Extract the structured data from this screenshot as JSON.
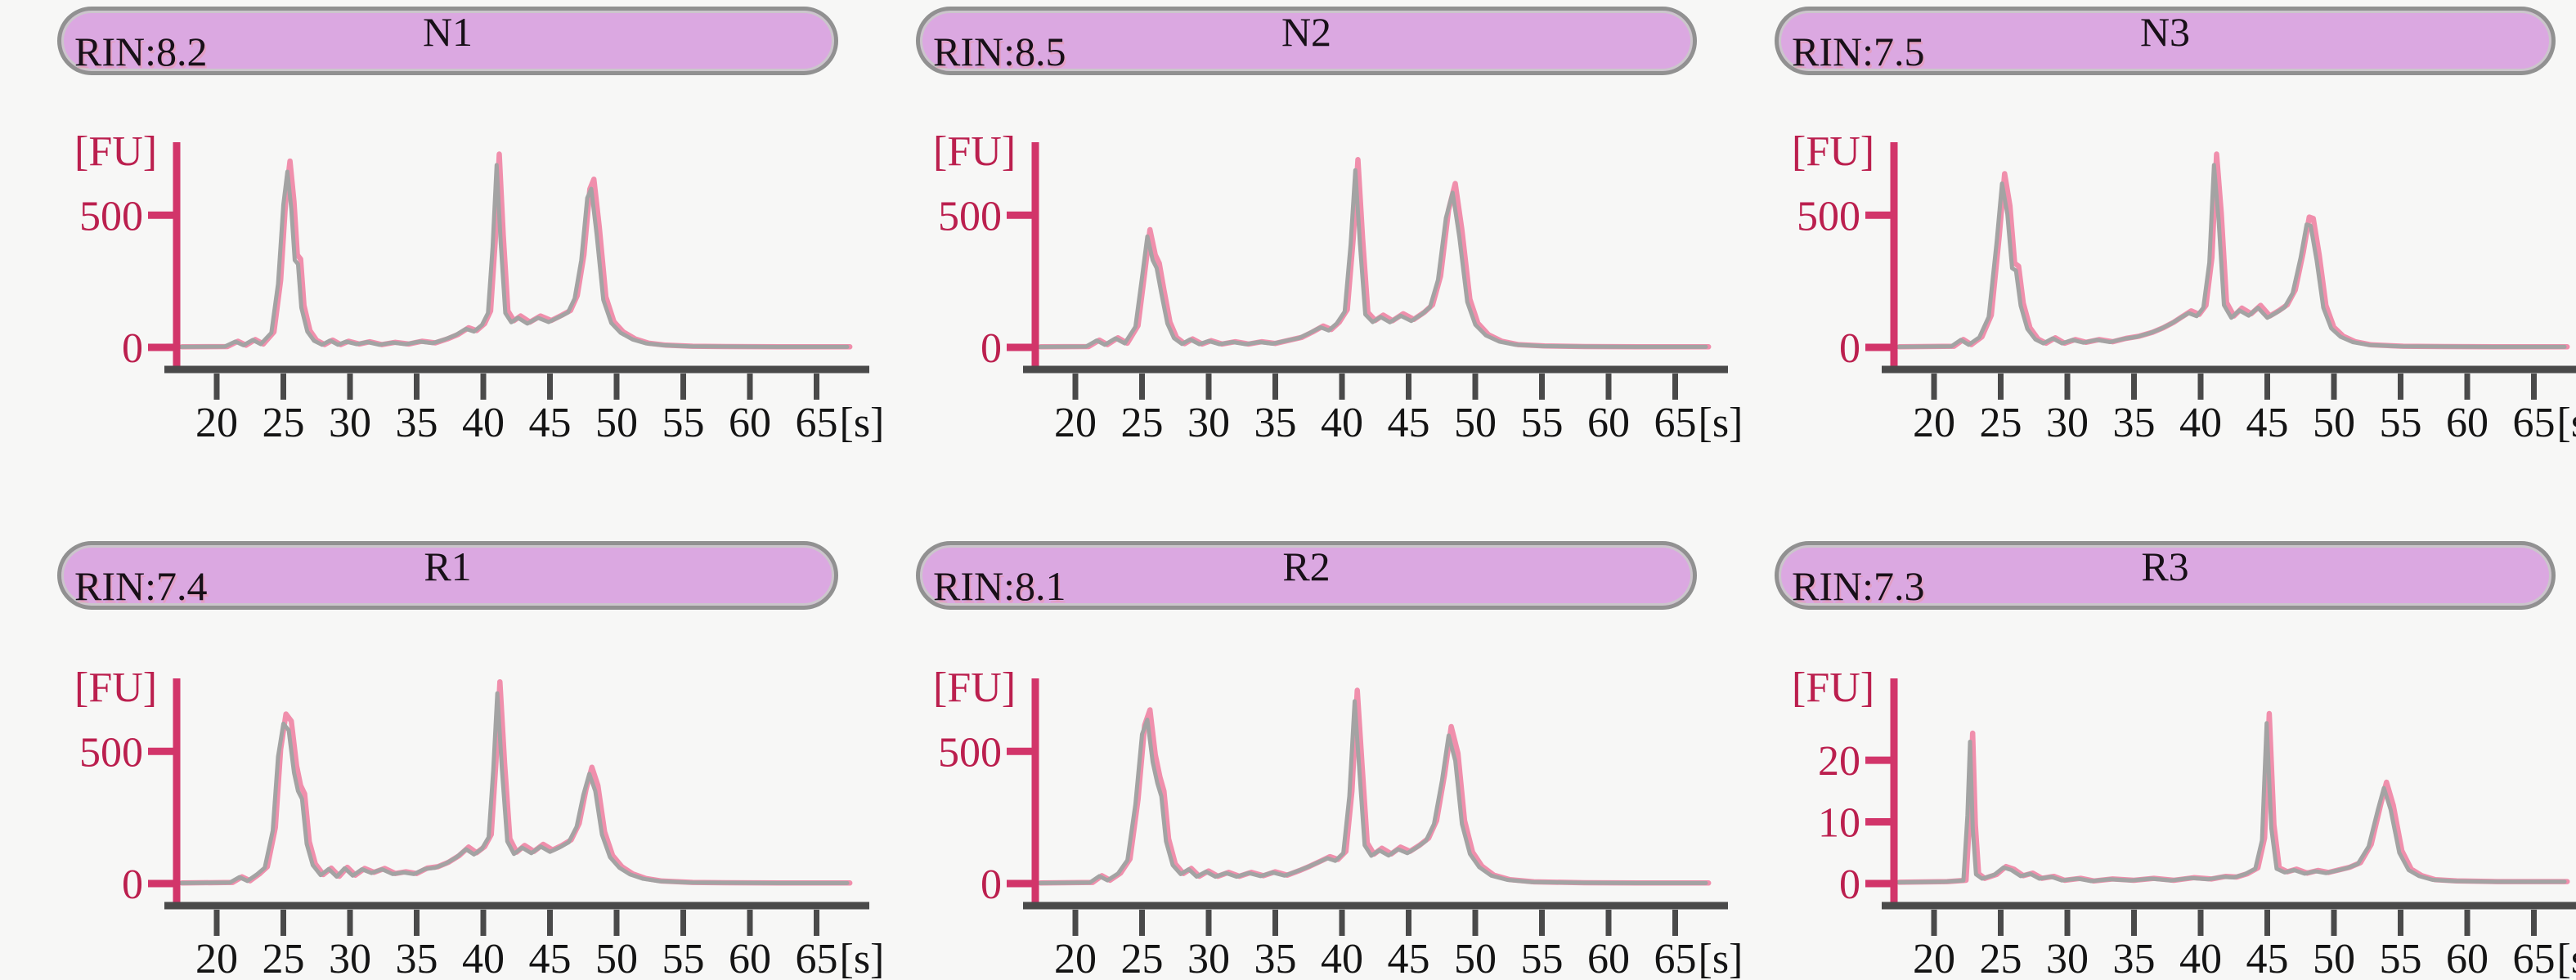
{
  "figure": {
    "description": "RNA electropherograms with RIN scores",
    "y_unit_label": "[FU]",
    "x_unit_label": "[s]"
  },
  "colors": {
    "background": "#f7f7f6",
    "pill_fill": "#dba8e1",
    "pill_border": "#919191",
    "header_text": "#181018",
    "y_axis_crimson": "#d2356a",
    "y_label_crimson": "#bb1f4e",
    "x_axis_dark": "#4a4a4a",
    "x_label_black": "#141414",
    "trace_gray": "#a3a3a3",
    "trace_pink": "#f08fac"
  },
  "axis": {
    "x_ticks": [
      20,
      25,
      30,
      35,
      40,
      45,
      50,
      55,
      60,
      65
    ],
    "x_unit_label": "[s]",
    "y_unit_label": "[FU]"
  },
  "chart_data": [
    {
      "type": "line",
      "title": "N1",
      "rin": "RIN:8.2",
      "xlabel": "[s]",
      "ylabel": "[FU]",
      "y_ticks": [
        {
          "v": 500,
          "label": "500"
        },
        {
          "v": 0,
          "label": "0"
        }
      ],
      "y_range": [
        0,
        770
      ],
      "x_range": [
        17.2,
        67.3
      ],
      "points": [
        [
          17.2,
          2
        ],
        [
          20.6,
          3
        ],
        [
          21.4,
          22
        ],
        [
          22,
          8
        ],
        [
          22.7,
          28
        ],
        [
          23.3,
          12
        ],
        [
          24.1,
          55
        ],
        [
          24.6,
          240
        ],
        [
          25,
          540
        ],
        [
          25.3,
          665
        ],
        [
          25.6,
          520
        ],
        [
          25.85,
          330
        ],
        [
          26.1,
          315
        ],
        [
          26.35,
          150
        ],
        [
          26.8,
          60
        ],
        [
          27.3,
          25
        ],
        [
          27.9,
          10
        ],
        [
          28.5,
          26
        ],
        [
          29.1,
          10
        ],
        [
          29.7,
          22
        ],
        [
          30.5,
          12
        ],
        [
          31.3,
          20
        ],
        [
          32.2,
          10
        ],
        [
          33.2,
          18
        ],
        [
          34.2,
          12
        ],
        [
          35.2,
          22
        ],
        [
          36.2,
          16
        ],
        [
          37.1,
          30
        ],
        [
          37.9,
          46
        ],
        [
          38.7,
          70
        ],
        [
          39.3,
          60
        ],
        [
          39.9,
          85
        ],
        [
          40.35,
          130
        ],
        [
          40.7,
          380
        ],
        [
          41,
          690
        ],
        [
          41.3,
          400
        ],
        [
          41.65,
          130
        ],
        [
          42.1,
          95
        ],
        [
          42.6,
          112
        ],
        [
          43.3,
          90
        ],
        [
          44.1,
          112
        ],
        [
          44.9,
          96
        ],
        [
          45.7,
          115
        ],
        [
          46.35,
          132
        ],
        [
          46.85,
          185
        ],
        [
          47.35,
          330
        ],
        [
          47.8,
          565
        ],
        [
          48.1,
          600
        ],
        [
          48.5,
          430
        ],
        [
          49,
          180
        ],
        [
          49.6,
          92
        ],
        [
          50.3,
          55
        ],
        [
          51.2,
          30
        ],
        [
          52.2,
          15
        ],
        [
          53.5,
          8
        ],
        [
          55.5,
          4
        ],
        [
          58,
          3
        ],
        [
          62,
          2
        ],
        [
          67.3,
          2
        ]
      ]
    },
    {
      "type": "line",
      "title": "N2",
      "rin": "RIN:8.5",
      "xlabel": "[s]",
      "ylabel": "[FU]",
      "y_ticks": [
        {
          "v": 500,
          "label": "500"
        },
        {
          "v": 0,
          "label": "0"
        }
      ],
      "y_range": [
        0,
        770
      ],
      "x_range": [
        17.2,
        67.3
      ],
      "points": [
        [
          17.2,
          2
        ],
        [
          20.8,
          3
        ],
        [
          21.6,
          26
        ],
        [
          22.2,
          10
        ],
        [
          23,
          34
        ],
        [
          23.7,
          15
        ],
        [
          24.5,
          78
        ],
        [
          25,
          265
        ],
        [
          25.4,
          420
        ],
        [
          25.8,
          330
        ],
        [
          26.1,
          300
        ],
        [
          26.45,
          205
        ],
        [
          26.9,
          90
        ],
        [
          27.4,
          35
        ],
        [
          28,
          13
        ],
        [
          28.6,
          30
        ],
        [
          29.3,
          12
        ],
        [
          30,
          24
        ],
        [
          30.8,
          12
        ],
        [
          31.8,
          20
        ],
        [
          32.8,
          12
        ],
        [
          33.8,
          20
        ],
        [
          34.8,
          14
        ],
        [
          35.8,
          25
        ],
        [
          36.8,
          36
        ],
        [
          37.6,
          55
        ],
        [
          38.4,
          76
        ],
        [
          39,
          64
        ],
        [
          39.6,
          90
        ],
        [
          40.2,
          135
        ],
        [
          40.65,
          390
        ],
        [
          41,
          670
        ],
        [
          41.35,
          390
        ],
        [
          41.75,
          125
        ],
        [
          42.3,
          96
        ],
        [
          42.9,
          115
        ],
        [
          43.6,
          95
        ],
        [
          44.4,
          120
        ],
        [
          45.2,
          100
        ],
        [
          46,
          126
        ],
        [
          46.6,
          152
        ],
        [
          47.2,
          255
        ],
        [
          47.8,
          490
        ],
        [
          48.3,
          585
        ],
        [
          48.8,
          420
        ],
        [
          49.4,
          172
        ],
        [
          50,
          86
        ],
        [
          50.8,
          45
        ],
        [
          51.8,
          22
        ],
        [
          53,
          10
        ],
        [
          55,
          5
        ],
        [
          58,
          3
        ],
        [
          62,
          2
        ],
        [
          67.3,
          2
        ]
      ]
    },
    {
      "type": "line",
      "title": "N3",
      "rin": "RIN:7.5",
      "xlabel": "[s]",
      "ylabel": "[FU]",
      "y_ticks": [
        {
          "v": 500,
          "label": "500"
        },
        {
          "v": 0,
          "label": "0"
        }
      ],
      "y_range": [
        0,
        770
      ],
      "x_range": [
        17.2,
        67.3
      ],
      "points": [
        [
          17.2,
          2
        ],
        [
          21.3,
          4
        ],
        [
          22,
          28
        ],
        [
          22.6,
          10
        ],
        [
          23.4,
          38
        ],
        [
          24.1,
          115
        ],
        [
          24.7,
          400
        ],
        [
          25.1,
          620
        ],
        [
          25.5,
          505
        ],
        [
          25.85,
          300
        ],
        [
          26.15,
          290
        ],
        [
          26.5,
          158
        ],
        [
          27,
          70
        ],
        [
          27.6,
          30
        ],
        [
          28.2,
          15
        ],
        [
          28.9,
          34
        ],
        [
          29.6,
          15
        ],
        [
          30.4,
          28
        ],
        [
          31.2,
          18
        ],
        [
          32.2,
          28
        ],
        [
          33.2,
          20
        ],
        [
          34.2,
          32
        ],
        [
          35.2,
          40
        ],
        [
          36.2,
          54
        ],
        [
          37,
          70
        ],
        [
          37.8,
          90
        ],
        [
          38.5,
          112
        ],
        [
          39.1,
          130
        ],
        [
          39.7,
          118
        ],
        [
          40.2,
          150
        ],
        [
          40.65,
          320
        ],
        [
          41,
          690
        ],
        [
          41.35,
          480
        ],
        [
          41.75,
          160
        ],
        [
          42.3,
          112
        ],
        [
          42.9,
          140
        ],
        [
          43.6,
          120
        ],
        [
          44.3,
          150
        ],
        [
          45,
          112
        ],
        [
          45.7,
          132
        ],
        [
          46.3,
          152
        ],
        [
          46.9,
          205
        ],
        [
          47.5,
          340
        ],
        [
          47.95,
          465
        ],
        [
          48.25,
          460
        ],
        [
          48.7,
          330
        ],
        [
          49.2,
          150
        ],
        [
          49.8,
          72
        ],
        [
          50.5,
          40
        ],
        [
          51.4,
          20
        ],
        [
          52.6,
          9
        ],
        [
          55,
          4
        ],
        [
          58,
          3
        ],
        [
          62,
          2
        ],
        [
          67.3,
          2
        ]
      ]
    },
    {
      "type": "line",
      "title": "R1",
      "rin": "RIN:7.4",
      "xlabel": "[s]",
      "ylabel": "[FU]",
      "y_ticks": [
        {
          "v": 500,
          "label": "500"
        },
        {
          "v": 0,
          "label": "0"
        }
      ],
      "y_range": [
        0,
        770
      ],
      "x_range": [
        17.2,
        67.3
      ],
      "points": [
        [
          17.2,
          2
        ],
        [
          21,
          4
        ],
        [
          21.7,
          24
        ],
        [
          22.3,
          10
        ],
        [
          23,
          34
        ],
        [
          23.6,
          60
        ],
        [
          24.2,
          200
        ],
        [
          24.6,
          480
        ],
        [
          25,
          605
        ],
        [
          25.4,
          580
        ],
        [
          25.8,
          420
        ],
        [
          26.1,
          350
        ],
        [
          26.4,
          320
        ],
        [
          26.75,
          150
        ],
        [
          27.2,
          70
        ],
        [
          27.8,
          32
        ],
        [
          28.4,
          55
        ],
        [
          29,
          26
        ],
        [
          29.6,
          58
        ],
        [
          30.2,
          30
        ],
        [
          30.9,
          54
        ],
        [
          31.6,
          40
        ],
        [
          32.4,
          54
        ],
        [
          33.2,
          36
        ],
        [
          34,
          42
        ],
        [
          34.8,
          36
        ],
        [
          35.6,
          55
        ],
        [
          36.4,
          60
        ],
        [
          37.2,
          76
        ],
        [
          38,
          100
        ],
        [
          38.7,
          130
        ],
        [
          39.3,
          110
        ],
        [
          39.9,
          132
        ],
        [
          40.4,
          175
        ],
        [
          40.75,
          430
        ],
        [
          41.05,
          720
        ],
        [
          41.4,
          430
        ],
        [
          41.8,
          160
        ],
        [
          42.3,
          112
        ],
        [
          42.9,
          136
        ],
        [
          43.6,
          115
        ],
        [
          44.3,
          140
        ],
        [
          45,
          120
        ],
        [
          45.7,
          136
        ],
        [
          46.4,
          156
        ],
        [
          47,
          215
        ],
        [
          47.5,
          335
        ],
        [
          47.95,
          415
        ],
        [
          48.4,
          350
        ],
        [
          48.9,
          185
        ],
        [
          49.5,
          100
        ],
        [
          50.2,
          60
        ],
        [
          51,
          35
        ],
        [
          52,
          18
        ],
        [
          53.2,
          9
        ],
        [
          55.5,
          4
        ],
        [
          58,
          3
        ],
        [
          62,
          2
        ],
        [
          67.3,
          2
        ]
      ]
    },
    {
      "type": "line",
      "title": "R2",
      "rin": "RIN:8.1",
      "xlabel": "[s]",
      "ylabel": "[FU]",
      "y_ticks": [
        {
          "v": 500,
          "label": "500"
        },
        {
          "v": 0,
          "label": "0"
        }
      ],
      "y_range": [
        0,
        770
      ],
      "x_range": [
        17.2,
        67.3
      ],
      "points": [
        [
          17.2,
          2
        ],
        [
          21.1,
          4
        ],
        [
          21.8,
          28
        ],
        [
          22.4,
          12
        ],
        [
          23.2,
          38
        ],
        [
          23.9,
          88
        ],
        [
          24.5,
          300
        ],
        [
          25,
          565
        ],
        [
          25.4,
          620
        ],
        [
          25.8,
          460
        ],
        [
          26.15,
          380
        ],
        [
          26.45,
          330
        ],
        [
          26.8,
          160
        ],
        [
          27.3,
          70
        ],
        [
          27.9,
          36
        ],
        [
          28.5,
          54
        ],
        [
          29.1,
          26
        ],
        [
          29.8,
          45
        ],
        [
          30.5,
          26
        ],
        [
          31.3,
          40
        ],
        [
          32.1,
          26
        ],
        [
          33,
          40
        ],
        [
          33.9,
          28
        ],
        [
          34.8,
          42
        ],
        [
          35.7,
          30
        ],
        [
          36.6,
          46
        ],
        [
          37.4,
          62
        ],
        [
          38.2,
          80
        ],
        [
          38.9,
          96
        ],
        [
          39.5,
          86
        ],
        [
          40.1,
          115
        ],
        [
          40.55,
          330
        ],
        [
          40.95,
          690
        ],
        [
          41.3,
          430
        ],
        [
          41.7,
          145
        ],
        [
          42.2,
          105
        ],
        [
          42.8,
          126
        ],
        [
          43.5,
          106
        ],
        [
          44.2,
          130
        ],
        [
          44.9,
          115
        ],
        [
          45.6,
          136
        ],
        [
          46.3,
          162
        ],
        [
          46.9,
          225
        ],
        [
          47.5,
          390
        ],
        [
          48,
          560
        ],
        [
          48.5,
          465
        ],
        [
          49,
          225
        ],
        [
          49.6,
          112
        ],
        [
          50.3,
          62
        ],
        [
          51.2,
          30
        ],
        [
          52.4,
          14
        ],
        [
          54.2,
          6
        ],
        [
          58,
          3
        ],
        [
          62,
          2
        ],
        [
          67.3,
          2
        ]
      ]
    },
    {
      "type": "line",
      "title": "R3",
      "rin": "RIN:7.3",
      "xlabel": "[s]",
      "ylabel": "[FU]",
      "y_ticks": [
        {
          "v": 20,
          "label": "20"
        },
        {
          "v": 10,
          "label": "10"
        },
        {
          "v": 0,
          "label": "0"
        }
      ],
      "y_range": [
        0,
        33
      ],
      "x_range": [
        17.2,
        67.3
      ],
      "points": [
        [
          17.2,
          0.2
        ],
        [
          20.8,
          0.3
        ],
        [
          22.2,
          0.5
        ],
        [
          22.5,
          11
        ],
        [
          22.7,
          23
        ],
        [
          22.9,
          9
        ],
        [
          23.15,
          1.5
        ],
        [
          23.6,
          0.8
        ],
        [
          24.5,
          1.4
        ],
        [
          25.2,
          2.6
        ],
        [
          25.8,
          2.2
        ],
        [
          26.5,
          1.2
        ],
        [
          27.2,
          1.6
        ],
        [
          27.9,
          0.8
        ],
        [
          28.8,
          1.1
        ],
        [
          29.6,
          0.5
        ],
        [
          30.8,
          0.8
        ],
        [
          31.8,
          0.4
        ],
        [
          33.2,
          0.7
        ],
        [
          34.8,
          0.5
        ],
        [
          36.3,
          0.8
        ],
        [
          37.8,
          0.5
        ],
        [
          39.3,
          0.9
        ],
        [
          40.6,
          0.7
        ],
        [
          41.7,
          1.1
        ],
        [
          42.5,
          1
        ],
        [
          43.3,
          1.5
        ],
        [
          44.1,
          2.4
        ],
        [
          44.6,
          7
        ],
        [
          44.95,
          26
        ],
        [
          45.3,
          9
        ],
        [
          45.7,
          2.4
        ],
        [
          46.3,
          1.8
        ],
        [
          47,
          2.2
        ],
        [
          47.8,
          1.6
        ],
        [
          48.6,
          2
        ],
        [
          49.4,
          1.7
        ],
        [
          50.2,
          2.1
        ],
        [
          51,
          2.5
        ],
        [
          51.8,
          3.2
        ],
        [
          52.6,
          6
        ],
        [
          53.3,
          12
        ],
        [
          53.75,
          15.5
        ],
        [
          54.25,
          12
        ],
        [
          54.9,
          5
        ],
        [
          55.6,
          2.2
        ],
        [
          56.4,
          1.2
        ],
        [
          57.4,
          0.6
        ],
        [
          59,
          0.4
        ],
        [
          62,
          0.3
        ],
        [
          67.3,
          0.3
        ]
      ]
    }
  ]
}
